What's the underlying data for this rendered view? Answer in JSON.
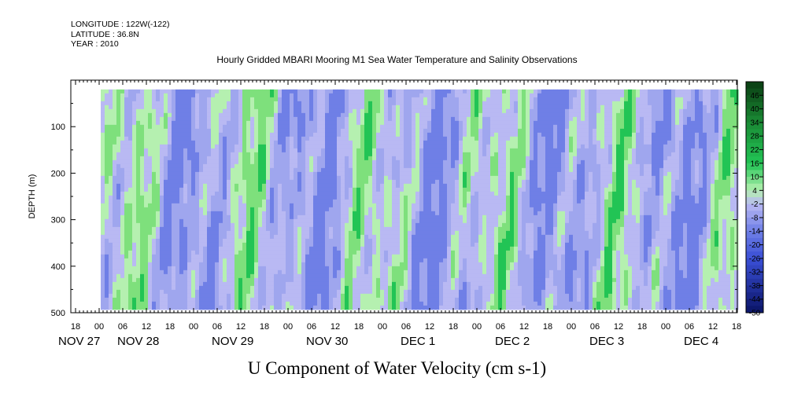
{
  "header": {
    "longitude": "LONGITUDE : 122W(-122)",
    "latitude": "LATITUDE : 36.8N",
    "year": "YEAR : 2010"
  },
  "chart_data": {
    "type": "heatmap",
    "title": "Hourly Gridded MBARI Mooring M1 Sea Water Temperature and Salinity Observations",
    "subtitle": "U Component of Water Velocity (cm s-1)",
    "ylabel": "DEPTH (m)",
    "y_reversed": true,
    "ylim": [
      0,
      500
    ],
    "y_ticks": [
      100,
      200,
      300,
      400,
      500
    ],
    "data_depth_range": [
      20,
      485
    ],
    "x_hour_ticks": [
      "18",
      "00",
      "06",
      "12",
      "18",
      "00",
      "06",
      "12",
      "18",
      "00",
      "06",
      "12",
      "18",
      "00",
      "06",
      "12",
      "18",
      "00",
      "06",
      "12",
      "18",
      "00",
      "06",
      "12",
      "18",
      "00",
      "06",
      "12",
      "18"
    ],
    "x_date_labels": [
      "NOV 27",
      "NOV 28",
      "NOV 29",
      "NOV 30",
      "DEC  1",
      "DEC  2",
      "DEC  3",
      "DEC  4"
    ],
    "colorbar": {
      "labels": [
        "46",
        "40",
        "34",
        "28",
        "22",
        "16",
        "10",
        "4",
        "-2",
        "-8",
        "-14",
        "-20",
        "-26",
        "-32",
        "-38",
        "-44",
        "-50"
      ],
      "min": -50,
      "max": 52,
      "step": 3
    },
    "colors": {
      "strong_positive": "#0a3d12",
      "positive": "#22c455",
      "weak_positive": "#b5f0b0",
      "weak_negative": "#b9b9f3",
      "negative": "#6f7fe6",
      "strong_negative": "#0a1466"
    }
  }
}
